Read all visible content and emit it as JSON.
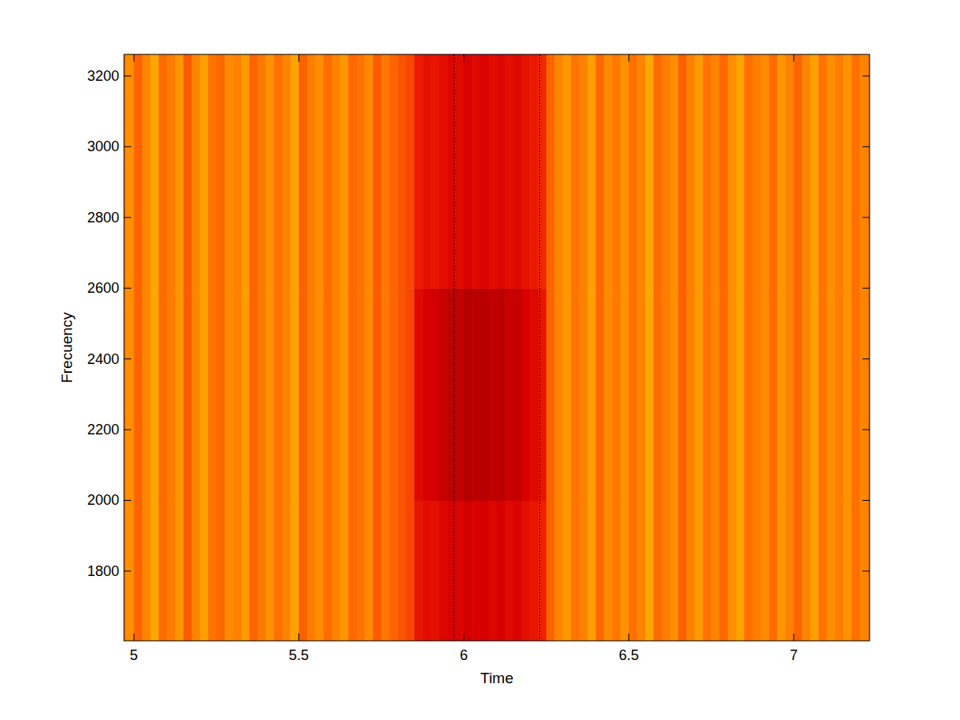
{
  "chart_data": {
    "type": "heatmap",
    "xlabel": "Time",
    "ylabel": "Frecuency",
    "xlim": [
      4.97,
      7.23
    ],
    "ylim": [
      1603,
      3261
    ],
    "xticks": [
      5,
      5.5,
      6,
      6.5,
      7
    ],
    "yticks": [
      1800,
      2000,
      2200,
      2400,
      2600,
      2800,
      3000,
      3200
    ],
    "grid": false,
    "selection": [
      5.97,
      6.23
    ],
    "clim": [
      0,
      1
    ],
    "x_edges": [
      4.95,
      4.975,
      5,
      5.025,
      5.05,
      5.075,
      5.1,
      5.125,
      5.15,
      5.175,
      5.2,
      5.225,
      5.25,
      5.275,
      5.3,
      5.325,
      5.35,
      5.375,
      5.4,
      5.425,
      5.45,
      5.475,
      5.5,
      5.525,
      5.55,
      5.575,
      5.6,
      5.625,
      5.65,
      5.675,
      5.7,
      5.725,
      5.75,
      5.775,
      5.8,
      5.825,
      5.85,
      5.875,
      5.9,
      5.925,
      5.95,
      5.975,
      6,
      6.025,
      6.05,
      6.075,
      6.1,
      6.125,
      6.15,
      6.175,
      6.2,
      6.225,
      6.25,
      6.275,
      6.3,
      6.325,
      6.35,
      6.375,
      6.4,
      6.425,
      6.45,
      6.475,
      6.5,
      6.525,
      6.55,
      6.575,
      6.6,
      6.625,
      6.65,
      6.675,
      6.7,
      6.725,
      6.75,
      6.775,
      6.8,
      6.825,
      6.85,
      6.875,
      6.9,
      6.925,
      6.95,
      6.975,
      7,
      7.025,
      7.05,
      7.075,
      7.1,
      7.125,
      7.15,
      7.175,
      7.2,
      7.225,
      7.25
    ],
    "y_edges": [
      1600,
      2000,
      2600,
      3270
    ],
    "cells": [
      [
        0.66,
        0.72,
        0.62,
        0.7,
        0.78,
        0.64,
        0.68,
        0.74,
        0.6,
        0.7,
        0.76,
        0.66,
        0.63,
        0.71,
        0.69,
        0.75,
        0.62,
        0.67,
        0.73,
        0.65,
        0.7,
        0.77,
        0.61,
        0.68,
        0.72,
        0.64,
        0.69,
        0.74,
        0.63,
        0.66,
        0.71,
        0.6,
        0.67,
        0.62,
        0.58,
        0.55,
        0.4,
        0.36,
        0.38,
        0.33,
        0.3,
        0.32,
        0.28,
        0.31,
        0.29,
        0.33,
        0.3,
        0.35,
        0.32,
        0.37,
        0.4,
        0.45,
        0.62,
        0.7,
        0.74,
        0.66,
        0.69,
        0.76,
        0.63,
        0.71,
        0.67,
        0.73,
        0.65,
        0.7,
        0.78,
        0.64,
        0.68,
        0.72,
        0.61,
        0.69,
        0.75,
        0.66,
        0.7,
        0.63,
        0.72,
        0.77,
        0.65,
        0.68,
        0.71,
        0.64,
        0.74,
        0.69,
        0.62,
        0.7,
        0.76,
        0.66,
        0.72,
        0.68,
        0.73,
        0.65,
        0.7,
        0.67
      ],
      [
        0.66,
        0.72,
        0.62,
        0.7,
        0.78,
        0.64,
        0.68,
        0.74,
        0.6,
        0.7,
        0.76,
        0.66,
        0.63,
        0.71,
        0.69,
        0.75,
        0.62,
        0.67,
        0.73,
        0.65,
        0.7,
        0.77,
        0.61,
        0.68,
        0.72,
        0.64,
        0.69,
        0.74,
        0.63,
        0.66,
        0.71,
        0.6,
        0.67,
        0.62,
        0.58,
        0.55,
        0.34,
        0.3,
        0.28,
        0.24,
        0.2,
        0.22,
        0.18,
        0.2,
        0.19,
        0.22,
        0.2,
        0.25,
        0.24,
        0.3,
        0.34,
        0.4,
        0.62,
        0.7,
        0.74,
        0.66,
        0.69,
        0.76,
        0.63,
        0.71,
        0.67,
        0.73,
        0.65,
        0.7,
        0.78,
        0.64,
        0.68,
        0.72,
        0.61,
        0.69,
        0.75,
        0.66,
        0.7,
        0.63,
        0.72,
        0.77,
        0.65,
        0.68,
        0.71,
        0.64,
        0.74,
        0.69,
        0.62,
        0.7,
        0.76,
        0.66,
        0.72,
        0.68,
        0.73,
        0.65,
        0.7,
        0.67
      ],
      [
        0.66,
        0.72,
        0.62,
        0.7,
        0.78,
        0.64,
        0.68,
        0.74,
        0.6,
        0.7,
        0.76,
        0.66,
        0.63,
        0.71,
        0.69,
        0.75,
        0.62,
        0.67,
        0.73,
        0.65,
        0.7,
        0.77,
        0.61,
        0.68,
        0.72,
        0.64,
        0.69,
        0.74,
        0.63,
        0.66,
        0.71,
        0.6,
        0.67,
        0.62,
        0.58,
        0.55,
        0.42,
        0.38,
        0.4,
        0.36,
        0.33,
        0.35,
        0.31,
        0.34,
        0.32,
        0.36,
        0.33,
        0.37,
        0.34,
        0.39,
        0.42,
        0.47,
        0.62,
        0.7,
        0.74,
        0.66,
        0.69,
        0.76,
        0.63,
        0.71,
        0.67,
        0.73,
        0.65,
        0.7,
        0.78,
        0.64,
        0.68,
        0.72,
        0.61,
        0.69,
        0.75,
        0.66,
        0.7,
        0.63,
        0.72,
        0.77,
        0.65,
        0.68,
        0.71,
        0.64,
        0.74,
        0.69,
        0.62,
        0.7,
        0.76,
        0.66,
        0.72,
        0.68,
        0.73,
        0.65,
        0.7,
        0.67
      ]
    ]
  }
}
